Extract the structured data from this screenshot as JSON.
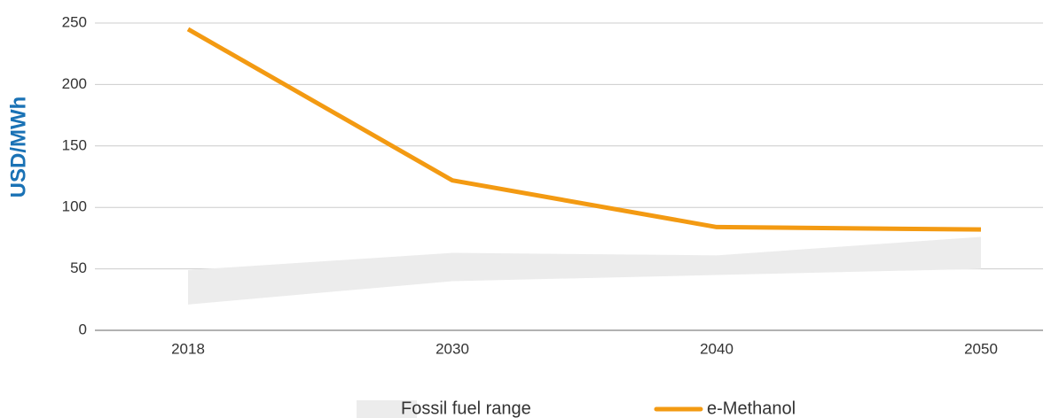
{
  "chart_data": {
    "type": "line",
    "ylabel": "USD/MWh",
    "categories": [
      "2018",
      "2030",
      "2040",
      "2050"
    ],
    "series": [
      {
        "name": "Fossil fuel range",
        "color": "#ececec",
        "low": [
          21,
          40,
          45,
          50
        ],
        "high": [
          49,
          63,
          61,
          76
        ]
      },
      {
        "name": "e-Methanol",
        "color": "#f39a12",
        "values": [
          245,
          122,
          84,
          82
        ]
      }
    ],
    "ylim": [
      0,
      250
    ],
    "yticks": [
      0,
      50,
      100,
      150,
      200,
      250
    ],
    "grid": true,
    "legend": "bottom"
  }
}
